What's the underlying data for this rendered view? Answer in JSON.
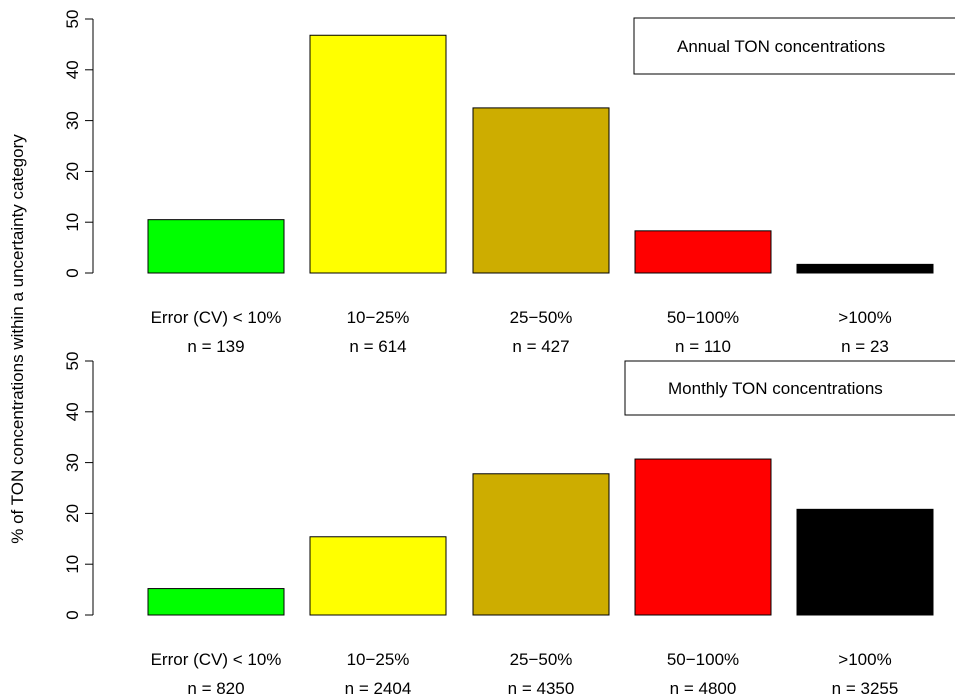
{
  "ylabel": "% of TON concentrations within a uncertainty category",
  "chart_data": [
    {
      "type": "bar",
      "title": "Annual TON concentrations",
      "categories": [
        "Error (CV) < 10%",
        "10−25%",
        "25−50%",
        "50−100%",
        ">100%"
      ],
      "counts": [
        "n = 139",
        "n = 614",
        "n = 427",
        "n = 110",
        "n = 23"
      ],
      "values": [
        10.5,
        46.8,
        32.5,
        8.3,
        1.7
      ],
      "colors": [
        "#00ff00",
        "#ffff00",
        "#cdad00",
        "#ff0000",
        "#000000"
      ],
      "ylim": [
        0,
        50
      ],
      "yticks": [
        0,
        10,
        20,
        30,
        40,
        50
      ],
      "legend": "top-right"
    },
    {
      "type": "bar",
      "title": "Monthly TON concentrations",
      "categories": [
        "Error (CV) < 10%",
        "10−25%",
        "25−50%",
        "50−100%",
        ">100%"
      ],
      "counts": [
        "n = 820",
        "n = 2404",
        "n = 4350",
        "n = 4800",
        "n = 3255"
      ],
      "values": [
        5.2,
        15.4,
        27.8,
        30.7,
        20.8
      ],
      "colors": [
        "#00ff00",
        "#ffff00",
        "#cdad00",
        "#ff0000",
        "#000000"
      ],
      "ylim": [
        0,
        50
      ],
      "yticks": [
        0,
        10,
        20,
        30,
        40,
        50
      ],
      "legend": "top-right"
    }
  ]
}
